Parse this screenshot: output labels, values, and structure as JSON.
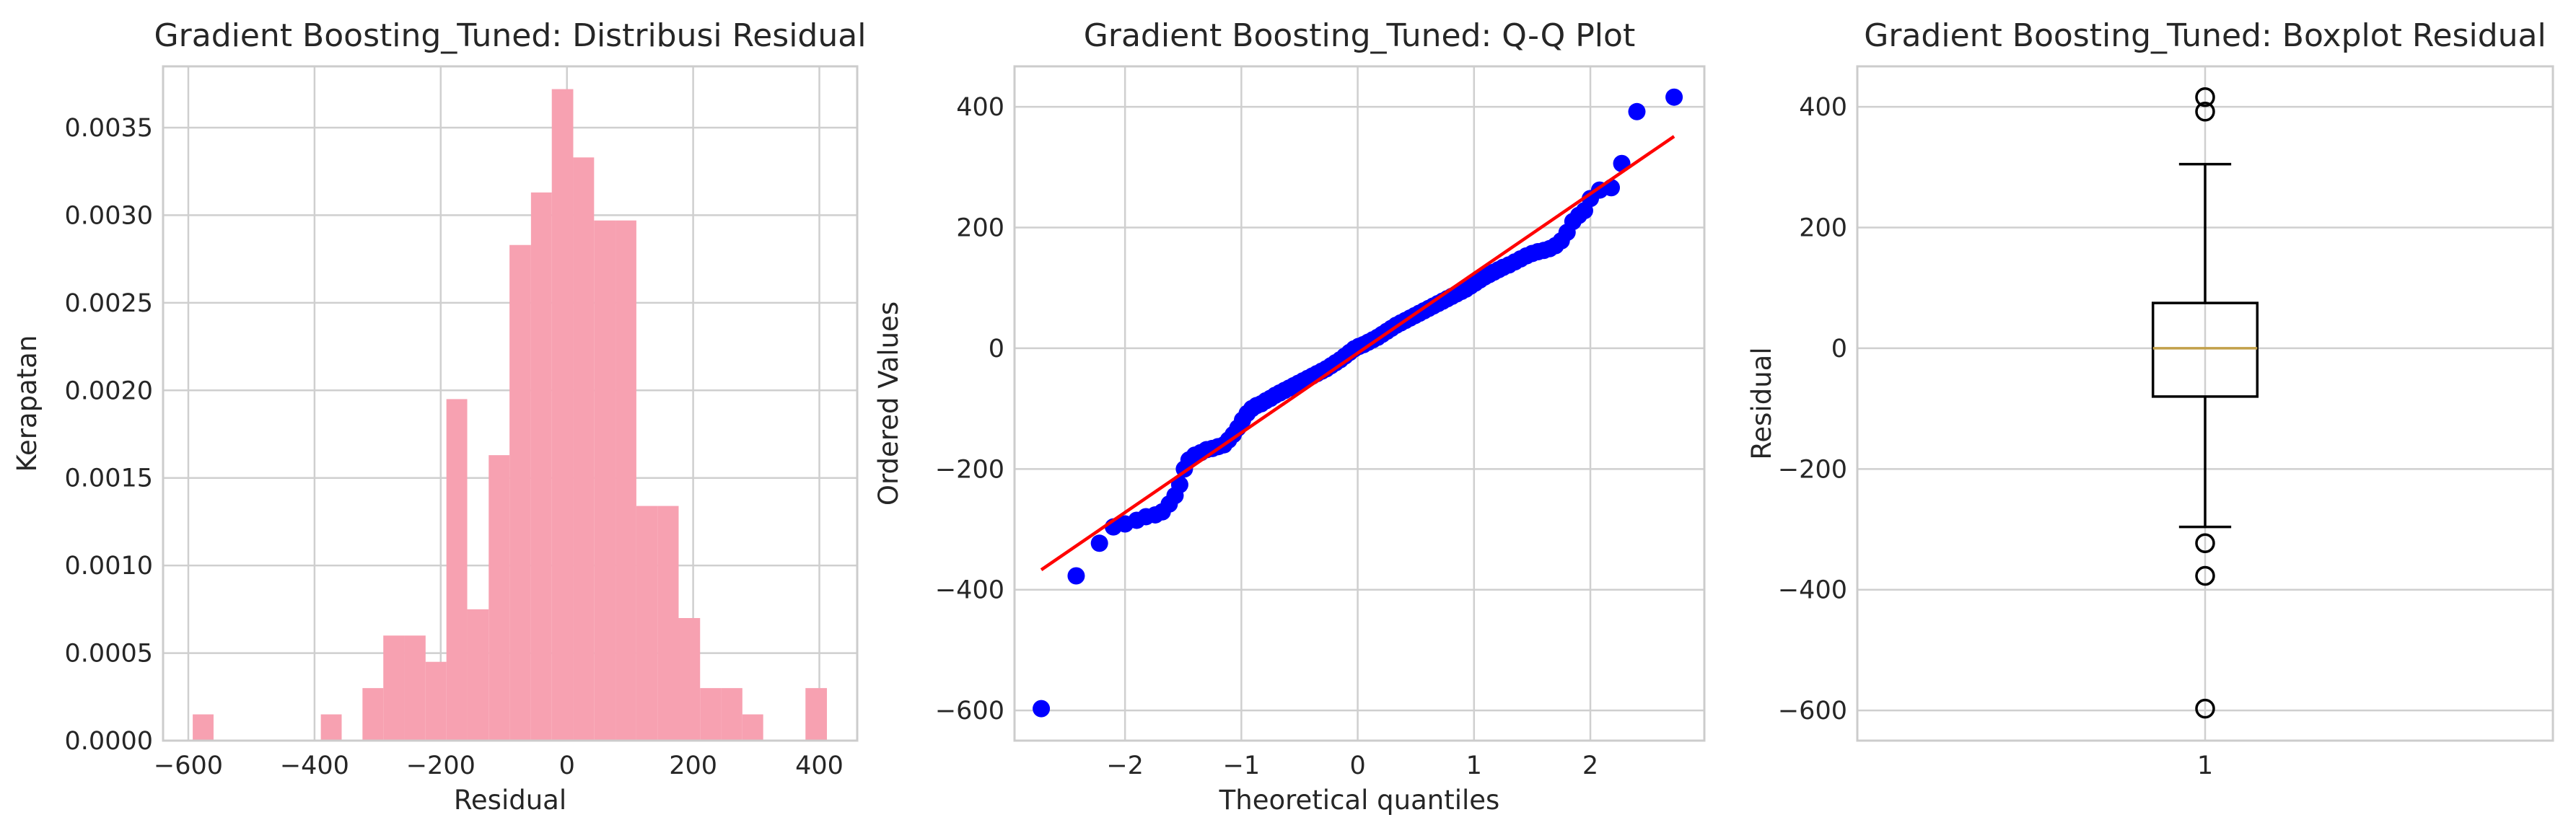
{
  "chart_data": [
    {
      "type": "histogram",
      "title": "Gradient Boosting_Tuned: Distribusi Residual",
      "xlabel": "Residual",
      "ylabel": "Kerapatan",
      "xlim": [
        -640,
        460
      ],
      "ylim": [
        0,
        0.00385
      ],
      "xticks": [
        -600,
        -400,
        -200,
        0,
        200,
        400
      ],
      "yticks": [
        0.0,
        0.0005,
        0.001,
        0.0015,
        0.002,
        0.0025,
        0.003,
        0.0035
      ],
      "ytick_labels": [
        "0.0000",
        "0.0005",
        "0.0010",
        "0.0015",
        "0.0020",
        "0.0025",
        "0.0030",
        "0.0035"
      ],
      "bar_color": "#f7a1b1",
      "bins": [
        {
          "x0": -593,
          "x1": -560,
          "density": 0.00015
        },
        {
          "x0": -390,
          "x1": -357,
          "density": 0.00015
        },
        {
          "x0": -324,
          "x1": -291,
          "density": 0.0003
        },
        {
          "x0": -291,
          "x1": -257,
          "density": 0.0006
        },
        {
          "x0": -257,
          "x1": -224,
          "density": 0.0006
        },
        {
          "x0": -224,
          "x1": -191,
          "density": 0.00045
        },
        {
          "x0": -191,
          "x1": -158,
          "density": 0.00195
        },
        {
          "x0": -158,
          "x1": -124,
          "density": 0.00075
        },
        {
          "x0": -124,
          "x1": -91,
          "density": 0.00163
        },
        {
          "x0": -91,
          "x1": -57,
          "density": 0.00283
        },
        {
          "x0": -57,
          "x1": -24,
          "density": 0.00313
        },
        {
          "x0": -24,
          "x1": 10,
          "density": 0.00372
        },
        {
          "x0": 10,
          "x1": 43,
          "density": 0.00333
        },
        {
          "x0": 43,
          "x1": 77,
          "density": 0.00297
        },
        {
          "x0": 77,
          "x1": 110,
          "density": 0.00297
        },
        {
          "x0": 110,
          "x1": 144,
          "density": 0.00134
        },
        {
          "x0": 144,
          "x1": 177,
          "density": 0.00134
        },
        {
          "x0": 177,
          "x1": 211,
          "density": 0.0007
        },
        {
          "x0": 211,
          "x1": 244,
          "density": 0.0003
        },
        {
          "x0": 244,
          "x1": 278,
          "density": 0.0003
        },
        {
          "x0": 278,
          "x1": 311,
          "density": 0.00015
        },
        {
          "x0": 378,
          "x1": 412,
          "density": 0.0003
        }
      ]
    },
    {
      "type": "scatter",
      "title": "Gradient Boosting_Tuned: Q-Q Plot",
      "xlabel": "Theoretical quantiles",
      "ylabel": "Ordered Values",
      "xlim": [
        -2.95,
        2.98
      ],
      "ylim": [
        -650,
        467
      ],
      "xticks": [
        -2,
        -1,
        0,
        1,
        2
      ],
      "yticks": [
        -600,
        -400,
        -200,
        0,
        200,
        400
      ],
      "point_color": "#0000ff",
      "line_color": "#ff0000",
      "fit_line": {
        "x": [
          -2.72,
          2.72
        ],
        "y": [
          -367,
          351
        ]
      },
      "points": [
        [
          -2.72,
          -597
        ],
        [
          -2.42,
          -377
        ],
        [
          -2.22,
          -323
        ],
        [
          -2.1,
          -296
        ],
        [
          -2.0,
          -291
        ],
        [
          -1.9,
          -285
        ],
        [
          -1.82,
          -279
        ],
        [
          -1.74,
          -276
        ],
        [
          -1.68,
          -271
        ],
        [
          -1.62,
          -258
        ],
        [
          -1.57,
          -244
        ],
        [
          -1.53,
          -226
        ],
        [
          -1.49,
          -200
        ],
        [
          -1.45,
          -185
        ],
        [
          -1.4,
          -177
        ],
        [
          -1.35,
          -173
        ],
        [
          -1.3,
          -168
        ],
        [
          -1.25,
          -166
        ],
        [
          -1.2,
          -163
        ],
        [
          -1.15,
          -160
        ],
        [
          -1.11,
          -152
        ],
        [
          -1.07,
          -143
        ],
        [
          -1.03,
          -132
        ],
        [
          -0.99,
          -119
        ],
        [
          -0.95,
          -108
        ],
        [
          -0.91,
          -100
        ],
        [
          -0.87,
          -95
        ],
        [
          -0.83,
          -92
        ],
        [
          -0.79,
          -87
        ],
        [
          -0.75,
          -83
        ],
        [
          -0.71,
          -78
        ],
        [
          -0.67,
          -74
        ],
        [
          -0.63,
          -70
        ],
        [
          -0.59,
          -66
        ],
        [
          -0.55,
          -62
        ],
        [
          -0.51,
          -58
        ],
        [
          -0.47,
          -54
        ],
        [
          -0.43,
          -50
        ],
        [
          -0.39,
          -46
        ],
        [
          -0.35,
          -42
        ],
        [
          -0.31,
          -38
        ],
        [
          -0.27,
          -34
        ],
        [
          -0.23,
          -29
        ],
        [
          -0.19,
          -24
        ],
        [
          -0.15,
          -19
        ],
        [
          -0.11,
          -13
        ],
        [
          -0.07,
          -7
        ],
        [
          -0.03,
          -1
        ],
        [
          0.01,
          3
        ],
        [
          0.05,
          6
        ],
        [
          0.09,
          10
        ],
        [
          0.13,
          14
        ],
        [
          0.17,
          18
        ],
        [
          0.21,
          23
        ],
        [
          0.25,
          28
        ],
        [
          0.29,
          33
        ],
        [
          0.33,
          38
        ],
        [
          0.37,
          42
        ],
        [
          0.41,
          46
        ],
        [
          0.45,
          50
        ],
        [
          0.49,
          54
        ],
        [
          0.53,
          58
        ],
        [
          0.57,
          62
        ],
        [
          0.61,
          66
        ],
        [
          0.65,
          70
        ],
        [
          0.69,
          74
        ],
        [
          0.73,
          78
        ],
        [
          0.77,
          82
        ],
        [
          0.81,
          86
        ],
        [
          0.85,
          90
        ],
        [
          0.89,
          94
        ],
        [
          0.93,
          98
        ],
        [
          0.97,
          103
        ],
        [
          1.01,
          108
        ],
        [
          1.05,
          113
        ],
        [
          1.09,
          118
        ],
        [
          1.13,
          122
        ],
        [
          1.17,
          126
        ],
        [
          1.21,
          130
        ],
        [
          1.25,
          134
        ],
        [
          1.3,
          138
        ],
        [
          1.35,
          143
        ],
        [
          1.4,
          148
        ],
        [
          1.45,
          153
        ],
        [
          1.5,
          157
        ],
        [
          1.55,
          160
        ],
        [
          1.6,
          162
        ],
        [
          1.65,
          165
        ],
        [
          1.7,
          170
        ],
        [
          1.75,
          178
        ],
        [
          1.8,
          192
        ],
        [
          1.85,
          210
        ],
        [
          1.9,
          220
        ],
        [
          1.95,
          228
        ],
        [
          2.0,
          248
        ],
        [
          2.08,
          262
        ],
        [
          2.18,
          266
        ],
        [
          2.27,
          306
        ],
        [
          2.4,
          392
        ],
        [
          2.72,
          416
        ]
      ]
    },
    {
      "type": "boxplot",
      "title": "Gradient Boosting_Tuned: Boxplot Residual",
      "xlabel": "",
      "ylabel": "Residual",
      "xlim": [
        0.5,
        1.5
      ],
      "ylim": [
        -650,
        467
      ],
      "xticks": [
        1
      ],
      "yticks": [
        -600,
        -400,
        -200,
        0,
        200,
        400
      ],
      "box": {
        "q1": -80,
        "median": 0,
        "q3": 75,
        "whisker_low": -296,
        "whisker_high": 305
      },
      "median_color": "#c2a04a",
      "outliers": [
        -597,
        -377,
        -323,
        392,
        416
      ]
    }
  ]
}
